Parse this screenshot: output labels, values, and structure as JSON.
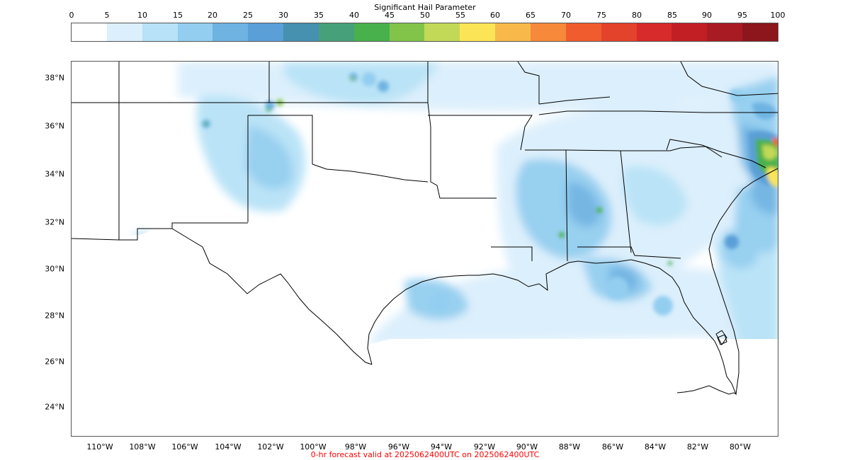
{
  "colorbar": {
    "title": "Significant Hail Parameter",
    "ticks": [
      "0",
      "5",
      "10",
      "15",
      "20",
      "25",
      "30",
      "35",
      "40",
      "45",
      "50",
      "55",
      "60",
      "65",
      "70",
      "75",
      "80",
      "85",
      "90",
      "95",
      "100"
    ],
    "colors": [
      "#ffffff",
      "#dbeffc",
      "#b7e2f7",
      "#93cef0",
      "#6eb3e2",
      "#5a9fd7",
      "#4690b0",
      "#46a17a",
      "#48b14b",
      "#82c44a",
      "#c1d957",
      "#fbe557",
      "#f9b94a",
      "#f6893a",
      "#f05c2d",
      "#e3432a",
      "#d72a2a",
      "#c21f25",
      "#a91b22",
      "#8c161c"
    ]
  },
  "map": {
    "lat_labels": [
      "38°N",
      "36°N",
      "34°N",
      "32°N",
      "30°N",
      "28°N",
      "26°N",
      "24°N"
    ],
    "lon_labels": [
      "110°W",
      "108°W",
      "106°W",
      "104°W",
      "102°W",
      "100°W",
      "98°W",
      "96°W",
      "94°W",
      "92°W",
      "90°W",
      "88°W",
      "86°W",
      "84°W",
      "82°W",
      "80°W"
    ]
  },
  "footer": "0-hr forecast valid at 2025062400UTC on 2025062400UTC"
}
